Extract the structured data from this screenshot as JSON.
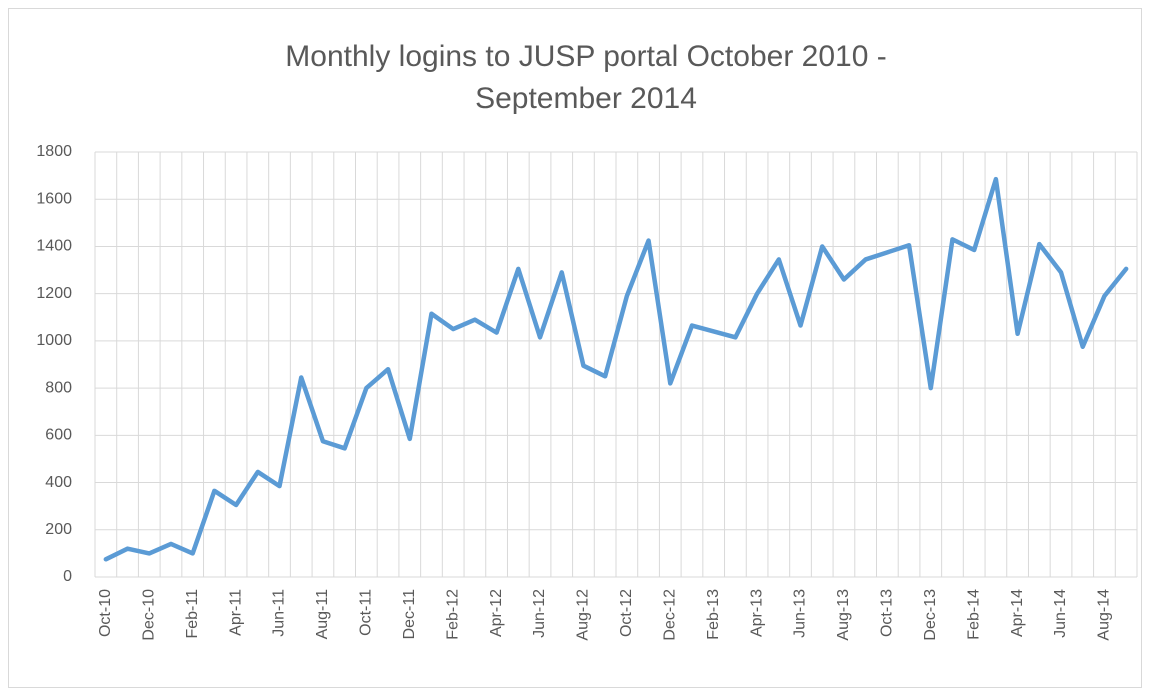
{
  "chart_data": {
    "type": "line",
    "title": "Monthly logins to JUSP portal October 2010 - September 2014",
    "categories": [
      "Oct-10",
      null,
      "Dec-10",
      null,
      "Feb-11",
      null,
      "Apr-11",
      null,
      "Jun-11",
      null,
      "Aug-11",
      null,
      "Oct-11",
      null,
      "Dec-11",
      null,
      "Feb-12",
      null,
      "Apr-12",
      null,
      "Jun-12",
      null,
      "Aug-12",
      null,
      "Oct-12",
      null,
      "Dec-12",
      null,
      "Feb-13",
      null,
      "Apr-13",
      null,
      "Jun-13",
      null,
      "Aug-13",
      null,
      "Oct-13",
      null,
      "Dec-13",
      null,
      "Feb-14",
      null,
      "Apr-14",
      null,
      "Jun-14",
      null,
      "Aug-14",
      null
    ],
    "series": [
      {
        "name": "Logins",
        "color": "#5b9bd5",
        "values": [
          75,
          120,
          100,
          140,
          100,
          365,
          305,
          445,
          385,
          845,
          575,
          545,
          800,
          880,
          585,
          1115,
          1050,
          1090,
          1035,
          1305,
          1015,
          1290,
          895,
          850,
          1190,
          1425,
          820,
          1065,
          1040,
          1015,
          1200,
          1345,
          1065,
          1400,
          1260,
          1345,
          1375,
          1405,
          800,
          1430,
          1385,
          1685,
          1030,
          1410,
          1290,
          975,
          1190,
          1305
        ]
      }
    ],
    "ylim": [
      0,
      1800
    ],
    "yticks": [
      0,
      200,
      400,
      600,
      800,
      1000,
      1200,
      1400,
      1600,
      1800
    ],
    "grid": true
  }
}
